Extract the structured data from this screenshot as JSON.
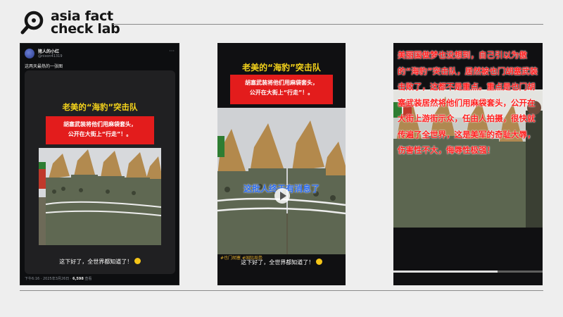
{
  "brand": {
    "line1": "asia fact",
    "line2": "check lab",
    "accent": "#151515"
  },
  "tweet": {
    "user_name": "猪人的小红",
    "handle": "@nixon41319",
    "text": "这两天最热的一张图",
    "footer_time": "下午6:16 · 2025年3月26日 · ",
    "footer_views": "6,598",
    "footer_views_label": " 查看"
  },
  "video": {
    "title_prefix": "老美的",
    "title_quote": "“海豹”",
    "title_suffix": "突击队",
    "red_line1": "胡塞武装将他们用麻袋套头，",
    "red_line2": "公开在大街上“行走”！。",
    "caption": "这下好了，全世界都知道了！",
    "overlay": "这批人终于有消息了",
    "hashtags": "#也门胡塞 #国际局势"
  },
  "panel3": {
    "text": "美丽国做梦也没想到，自己引以为傲的“海豹”突击队，居然被也门胡塞武装击败了，这都不是重点。重点是也门胡塞武装居然将他们用麻袋套头，公开在大街上游街示众，任由人拍摄，很快就传遍了全世界，这是美军的奇耻大辱，伤害性不大，侮辱性极强！"
  },
  "colors": {
    "title_yellow": "#f2d11b",
    "red_box": "#e31c1c",
    "panel3_text": "#ff2020",
    "overlay_blue": "#2e6df0",
    "hashtag": "#d8a72c"
  },
  "icons": {
    "emoji": "grinning-face-icon",
    "play": "play-icon",
    "menu": "more-dots-icon"
  }
}
